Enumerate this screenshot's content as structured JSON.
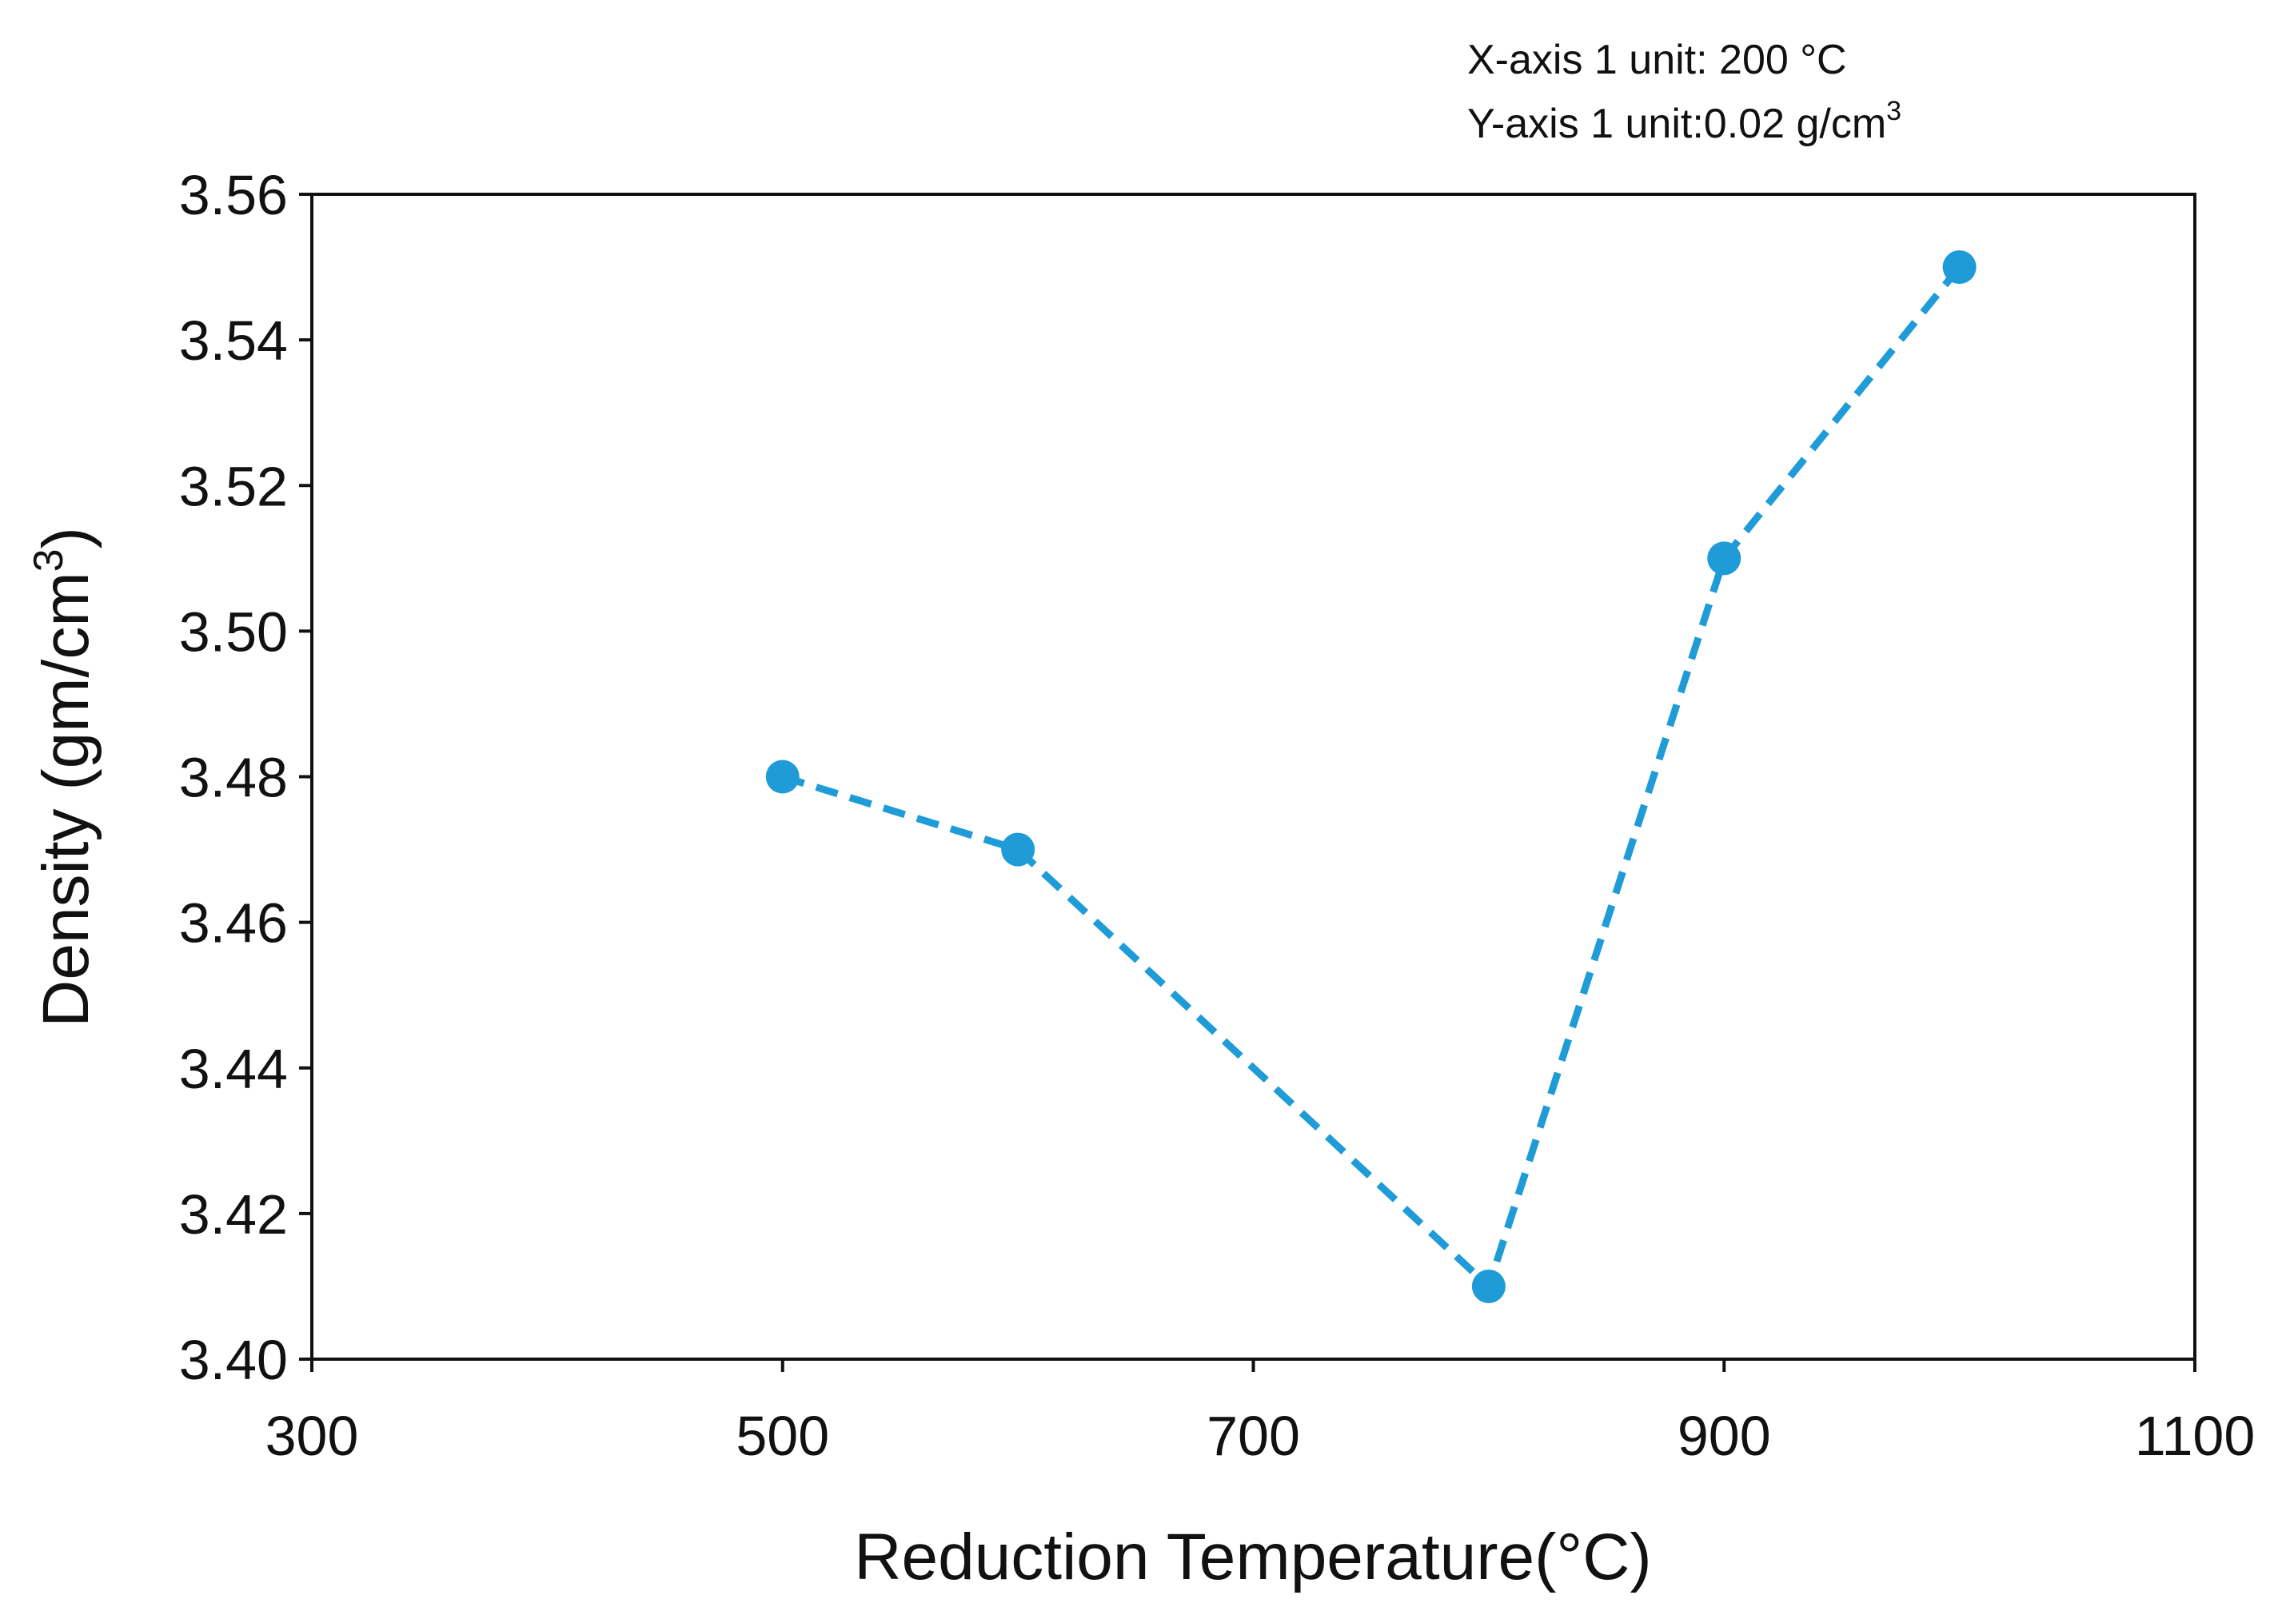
{
  "chart_data": {
    "type": "line",
    "title": "",
    "xlabel": "Reduction Temperature(°C)",
    "ylabel_main": "Density (gm/cm",
    "ylabel_sup": "3",
    "ylabel_end": ")",
    "xlim": [
      300,
      1100
    ],
    "ylim": [
      3.4,
      3.56
    ],
    "x_ticks": [
      300,
      500,
      700,
      900,
      1100
    ],
    "x_tick_labels": [
      "300",
      "500",
      "700",
      "900",
      "1100"
    ],
    "y_ticks": [
      3.4,
      3.42,
      3.44,
      3.46,
      3.48,
      3.5,
      3.52,
      3.54,
      3.56
    ],
    "y_tick_labels": [
      "3.40",
      "3.42",
      "3.44",
      "3.46",
      "3.48",
      "3.50",
      "3.52",
      "3.54",
      "3.56"
    ],
    "grid": false,
    "series": [
      {
        "name": "Density",
        "x": [
          500,
          600,
          800,
          900,
          1000
        ],
        "y": [
          3.48,
          3.47,
          3.41,
          3.51,
          3.55
        ],
        "line_style": "dashed",
        "marker": "circle",
        "color": "#1f9bd7"
      }
    ],
    "annotations": {
      "x_unit_note": "X-axis 1 unit: 200 °C",
      "y_unit_note_main": "Y-axis 1 unit:0.02 g/cm",
      "y_unit_note_sup": "3"
    }
  }
}
